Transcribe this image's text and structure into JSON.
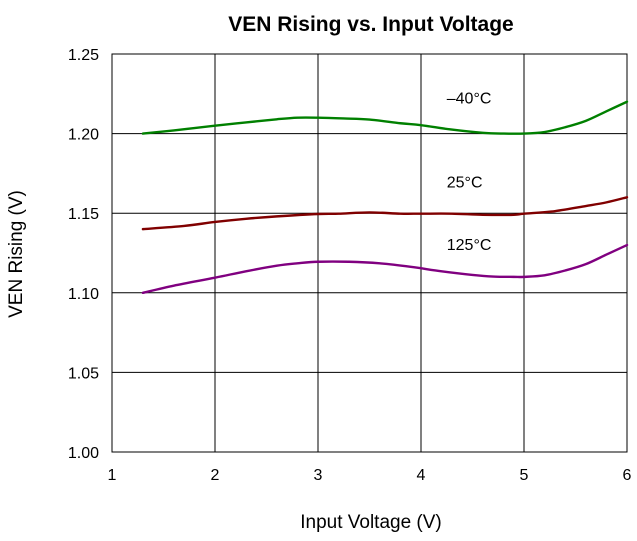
{
  "chart_data": {
    "type": "line",
    "title": "VEN Rising vs. Input Voltage",
    "xlabel": "Input Voltage (V)",
    "ylabel": "VEN Rising (V)",
    "xlim": [
      1,
      6
    ],
    "ylim": [
      1.0,
      1.25
    ],
    "xticks": [
      1,
      2,
      3,
      4,
      5,
      6
    ],
    "xtick_labels": [
      "1",
      "2",
      "3",
      "4",
      "5",
      "6"
    ],
    "yticks": [
      1.0,
      1.05,
      1.1,
      1.15,
      1.2,
      1.25
    ],
    "ytick_labels": [
      "1.00",
      "1.05",
      "1.10",
      "1.15",
      "1.20",
      "1.25"
    ],
    "grid": true,
    "legend": "none",
    "series": [
      {
        "label": "–40°C",
        "color": "#008000",
        "x": [
          1.3,
          1.6,
          2.0,
          2.3,
          2.6,
          2.8,
          3.0,
          3.25,
          3.5,
          3.8,
          4.0,
          4.3,
          4.6,
          4.8,
          5.0,
          5.2,
          5.4,
          5.6,
          5.8,
          6.0
        ],
        "y": [
          1.2,
          1.202,
          1.205,
          1.207,
          1.209,
          1.21,
          1.21,
          1.2095,
          1.2088,
          1.2065,
          1.2053,
          1.2025,
          1.2005,
          1.2,
          1.2,
          1.201,
          1.204,
          1.208,
          1.214,
          1.22
        ]
      },
      {
        "label": "25°C",
        "color": "#800000",
        "x": [
          1.3,
          1.7,
          2.0,
          2.3,
          2.6,
          3.0,
          3.2,
          3.5,
          3.8,
          4.0,
          4.3,
          4.6,
          4.9,
          5.0,
          5.3,
          5.6,
          5.8,
          6.0
        ],
        "y": [
          1.14,
          1.142,
          1.1445,
          1.1465,
          1.148,
          1.1495,
          1.1497,
          1.1505,
          1.1497,
          1.1497,
          1.1497,
          1.149,
          1.149,
          1.1497,
          1.1513,
          1.1545,
          1.1568,
          1.16
        ]
      },
      {
        "label": "125°C",
        "color": "#800080",
        "x": [
          1.3,
          1.6,
          2.0,
          2.3,
          2.6,
          2.8,
          3.0,
          3.3,
          3.6,
          3.9,
          4.2,
          4.5,
          4.7,
          4.9,
          5.0,
          5.2,
          5.4,
          5.6,
          5.8,
          6.0
        ],
        "y": [
          1.1,
          1.1045,
          1.1095,
          1.1135,
          1.117,
          1.1185,
          1.1195,
          1.1195,
          1.1185,
          1.1163,
          1.1135,
          1.1112,
          1.1102,
          1.11,
          1.11,
          1.111,
          1.114,
          1.118,
          1.124,
          1.13
        ]
      }
    ],
    "annotations": [
      {
        "text": "–40°C",
        "x": 4.25,
        "y": 1.219
      },
      {
        "text": "25°C",
        "x": 4.25,
        "y": 1.166
      },
      {
        "text": "125°C",
        "x": 4.25,
        "y": 1.127
      }
    ]
  }
}
